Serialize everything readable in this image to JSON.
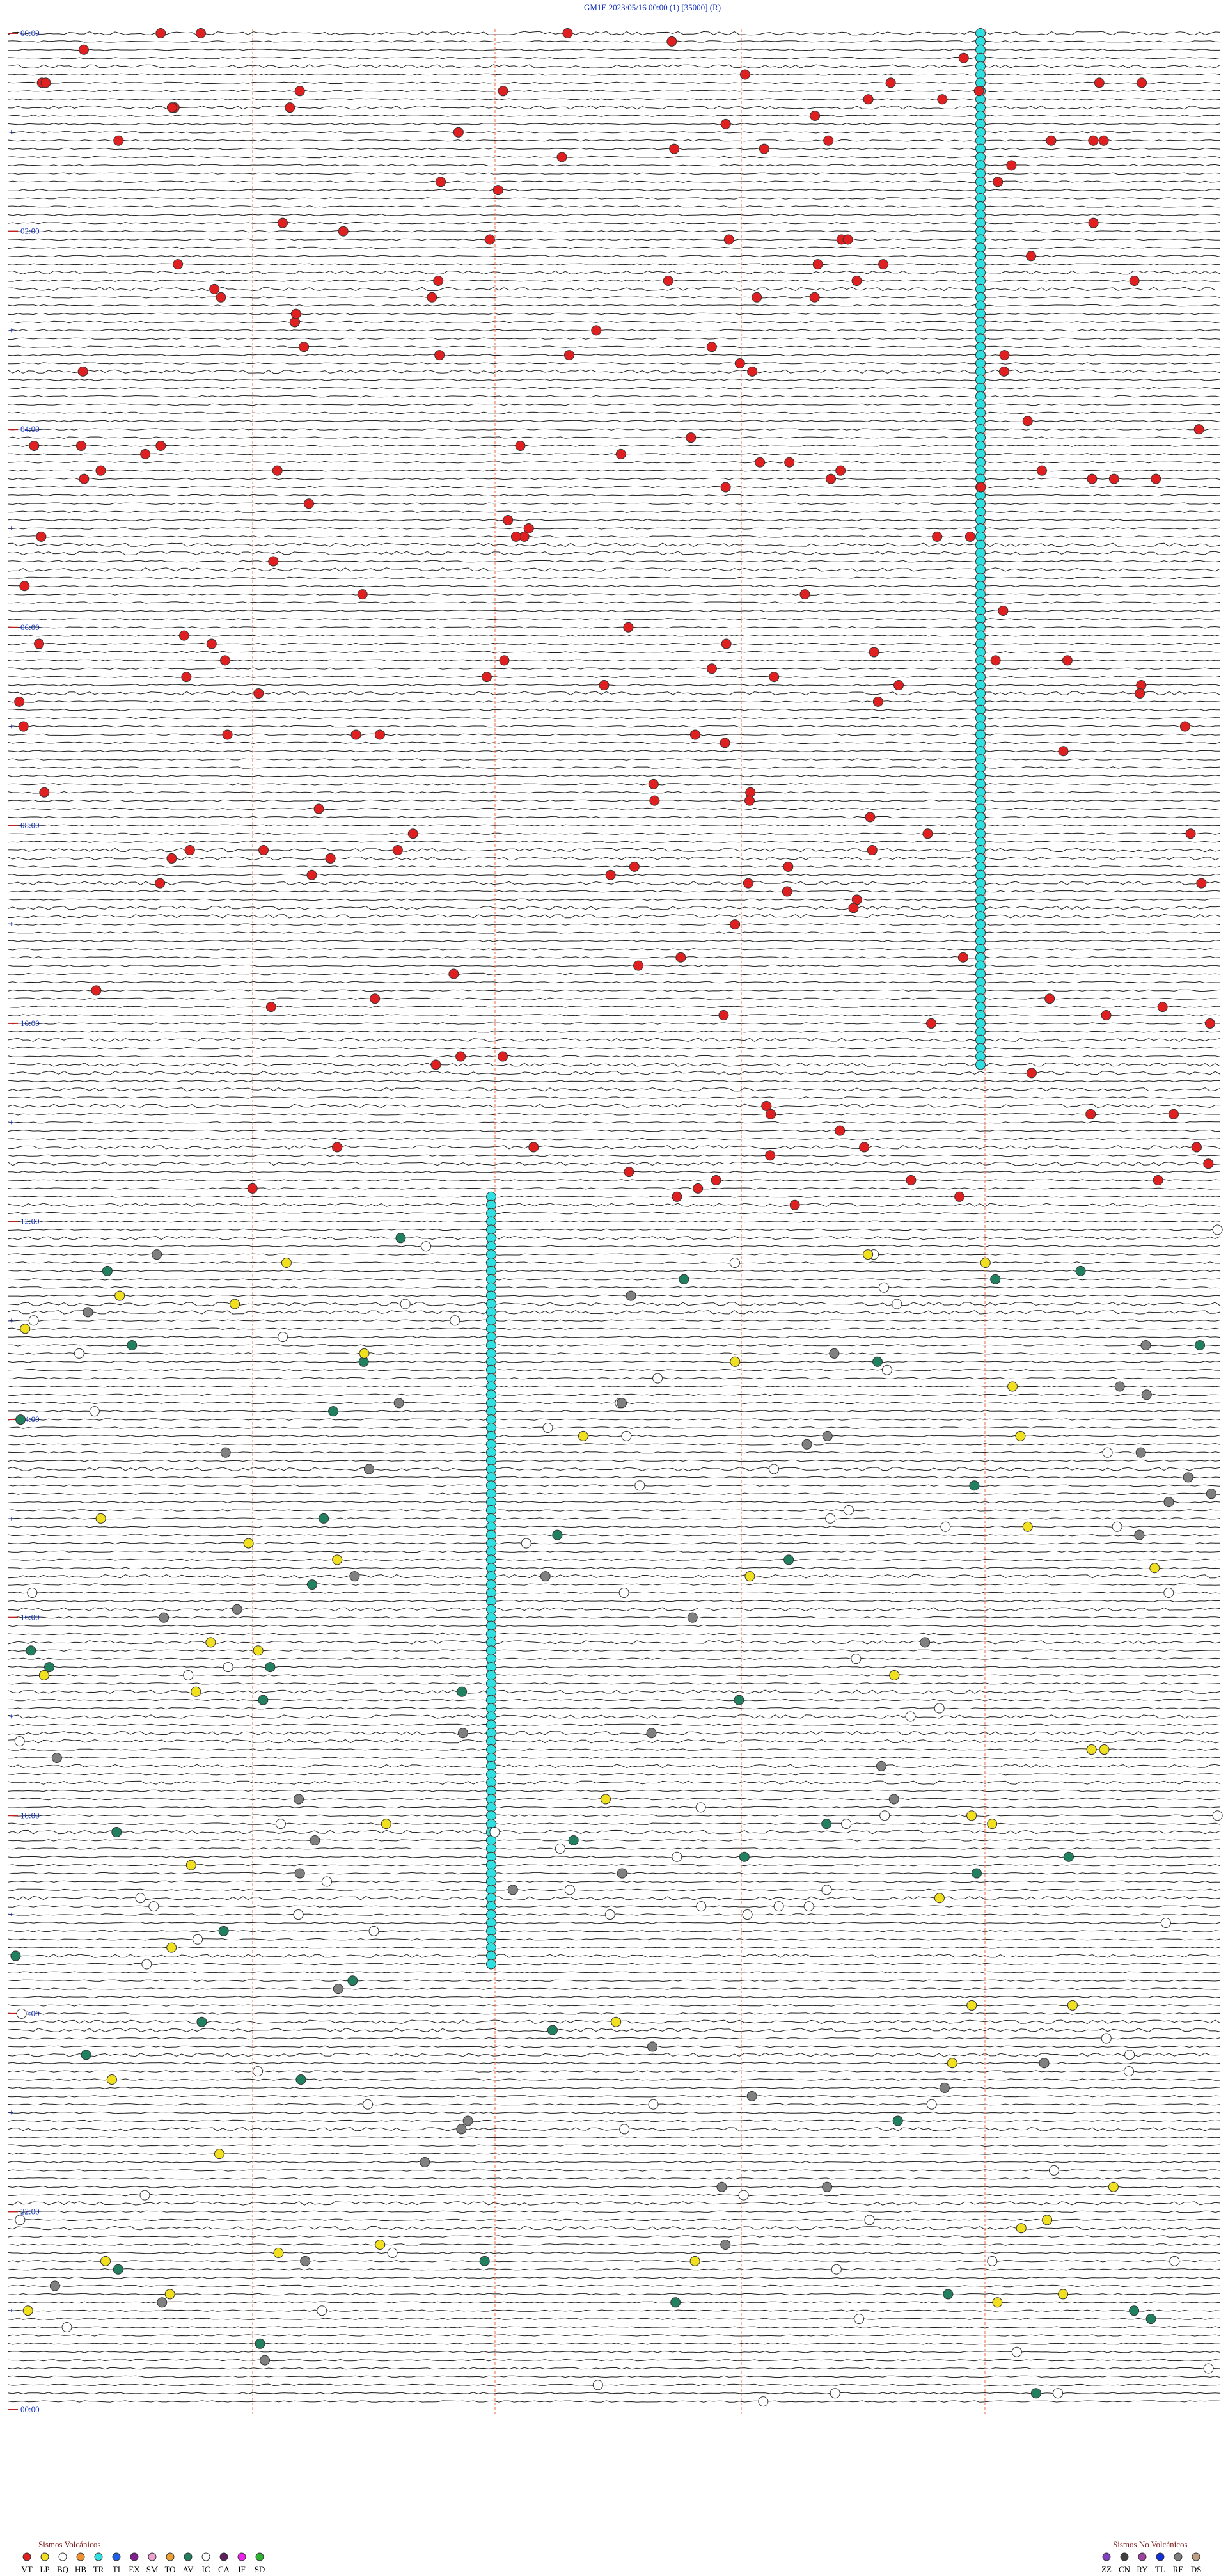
{
  "header": {
    "title": "GM1E     2023/05/16 00:00     (1)     [35000]     (R)"
  },
  "time_labels": [
    "00:00",
    "02:00",
    "04:00",
    "06:00",
    "08:00",
    "10:00",
    "12:00",
    "14:00",
    "16:00",
    "18:00",
    "20:00",
    "22:00",
    "00:00"
  ],
  "legend_volcanic": {
    "title": "Sismos Volcánicos",
    "items": [
      {
        "code": "VT",
        "color": "#e02020"
      },
      {
        "code": "LP",
        "color": "#f0e020"
      },
      {
        "code": "BQ",
        "color": "#ffffff"
      },
      {
        "code": "HB",
        "color": "#f09030"
      },
      {
        "code": "TR",
        "color": "#30e0e0"
      },
      {
        "code": "TI",
        "color": "#2060e0"
      },
      {
        "code": "EX",
        "color": "#802090"
      },
      {
        "code": "SM",
        "color": "#f0a0d0"
      },
      {
        "code": "TO",
        "color": "#f0a030"
      },
      {
        "code": "AV",
        "color": "#208060"
      },
      {
        "code": "IC",
        "color": "#ffffff"
      },
      {
        "code": "CA",
        "color": "#602060"
      },
      {
        "code": "IF",
        "color": "#f020f0"
      },
      {
        "code": "SD",
        "color": "#30b030"
      }
    ]
  },
  "legend_nonvolcanic": {
    "title": "Sismos No Volcánicos",
    "items": [
      {
        "code": "ZZ",
        "color": "#8040c0"
      },
      {
        "code": "CN",
        "color": "#404040"
      },
      {
        "code": "RY",
        "color": "#a040a0"
      },
      {
        "code": "TL",
        "color": "#1030e0"
      },
      {
        "code": "RE",
        "color": "#808080"
      },
      {
        "code": "DS",
        "color": "#c0a080"
      }
    ]
  }
}
